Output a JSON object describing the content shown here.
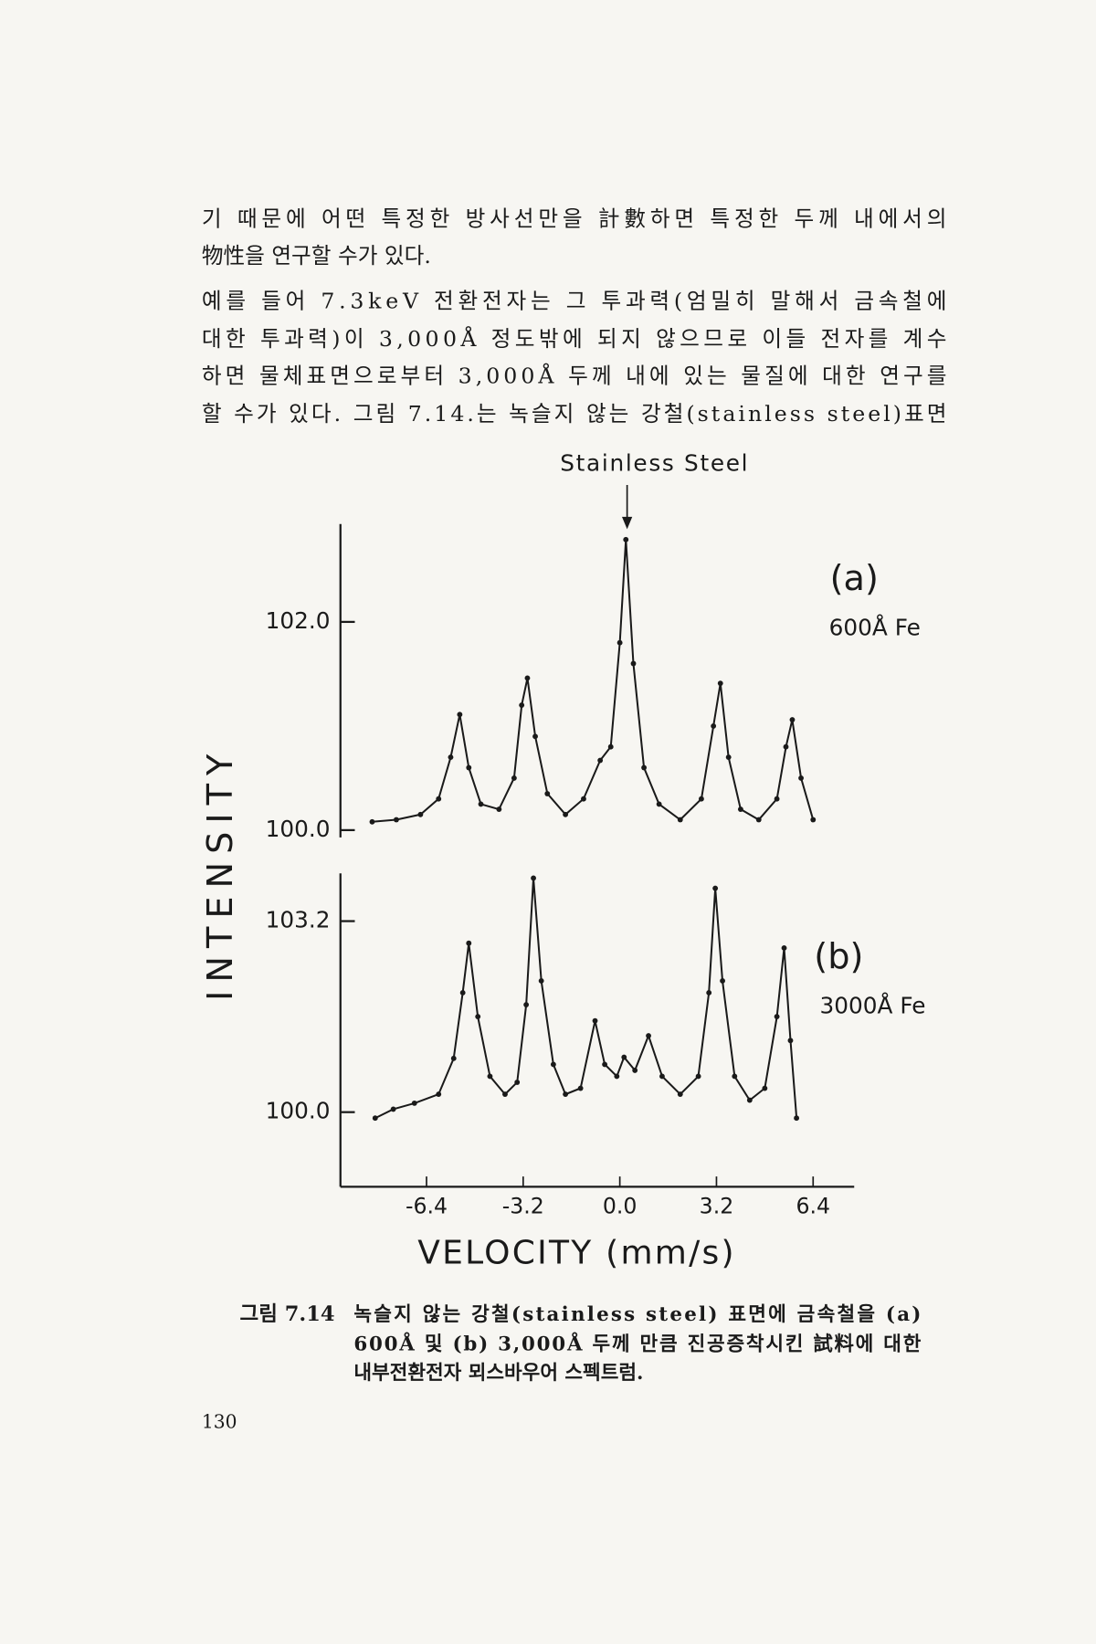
{
  "body": {
    "lines": [
      "기 때문에 어떤 특정한 방사선만을 計數하면 특정한 두께 내에서의",
      "物性을 연구할 수가 있다.",
      "예를 들어 7.3keV 전환전자는 그 투과력(엄밀히 말해서 금속철에",
      "대한 투과력)이 3,000Å 정도밖에 되지 않으므로 이들 전자를 계수",
      "하면 물체표면으로부터 3,000Å 두께 내에 있는 물질에 대한 연구를",
      "할 수가 있다. 그림 7.14.는 녹슬지 않는 강철(stainless steel)표면"
    ]
  },
  "chart_data": [
    {
      "type": "line",
      "annotation": "Stainless Steel",
      "annotation_x": 0.2,
      "panel_label": "(a)",
      "sample": "600Å Fe",
      "ylabel": "INTENSITY",
      "color": "#1a1a1a",
      "xlim": [
        -9.25,
        7.76
      ],
      "ylim": [
        99.93,
        102.94
      ],
      "yticks": [
        {
          "value": 100,
          "label": "100.0"
        },
        {
          "value": 102,
          "label": "102.0"
        }
      ],
      "x": [
        -8.2,
        -7.4,
        -6.6,
        -6.0,
        -5.6,
        -5.3,
        -5.0,
        -4.6,
        -4.0,
        -3.5,
        -3.25,
        -3.06,
        -2.8,
        -2.4,
        -1.8,
        -1.2,
        -0.65,
        -0.3,
        0.0,
        0.2,
        0.45,
        0.8,
        1.3,
        2.0,
        2.7,
        3.1,
        3.33,
        3.6,
        4.0,
        4.6,
        5.2,
        5.5,
        5.71,
        6.0,
        6.4
      ],
      "values": [
        100.08,
        100.1,
        100.15,
        100.3,
        100.7,
        101.11,
        100.6,
        100.25,
        100.2,
        100.5,
        101.2,
        101.46,
        100.9,
        100.35,
        100.15,
        100.3,
        100.67,
        100.8,
        101.8,
        102.79,
        101.6,
        100.6,
        100.25,
        100.1,
        100.3,
        101.0,
        101.41,
        100.7,
        100.2,
        100.1,
        100.3,
        100.8,
        101.06,
        100.5,
        100.1
      ]
    },
    {
      "type": "line",
      "panel_label": "(b)",
      "sample": "3000Å Fe",
      "xlabel": "VELOCITY (mm/s)",
      "color": "#1a1a1a",
      "xlim": [
        -9.25,
        7.76
      ],
      "ylim": [
        98.75,
        104.0
      ],
      "xticks": [
        -6.4,
        -3.2,
        {
          "value": 0,
          "label": "0.0"
        },
        3.2,
        6.4
      ],
      "yticks": [
        {
          "value": 100,
          "label": "100.0"
        },
        103.2
      ],
      "x": [
        -8.1,
        -7.5,
        -6.8,
        -6.0,
        -5.5,
        -5.2,
        -5.0,
        -4.7,
        -4.3,
        -3.8,
        -3.4,
        -3.1,
        -2.86,
        -2.6,
        -2.2,
        -1.8,
        -1.3,
        -0.82,
        -0.5,
        -0.1,
        0.14,
        0.5,
        0.95,
        1.4,
        2.0,
        2.6,
        2.95,
        3.16,
        3.4,
        3.8,
        4.3,
        4.8,
        5.2,
        5.44,
        5.65,
        5.85
      ],
      "values": [
        99.9,
        100.05,
        100.15,
        100.3,
        100.9,
        102.0,
        102.83,
        101.6,
        100.6,
        100.3,
        100.5,
        101.8,
        103.92,
        102.2,
        100.8,
        100.3,
        100.4,
        101.53,
        100.8,
        100.6,
        100.92,
        100.7,
        101.28,
        100.6,
        100.3,
        100.6,
        102.0,
        103.75,
        102.2,
        100.6,
        100.2,
        100.4,
        101.6,
        102.75,
        101.2,
        99.9
      ]
    }
  ],
  "caption": {
    "label": "그림 7.14",
    "lines": [
      "녹슬지 않는 강철(stainless steel) 표면에 금속철을 (a)",
      "600Å 및 (b) 3,000Å 두께 만큼 진공증착시킨 試料에 대한",
      "내부전환전자 뫼스바우어 스펙트럼."
    ]
  },
  "page_number": "130"
}
